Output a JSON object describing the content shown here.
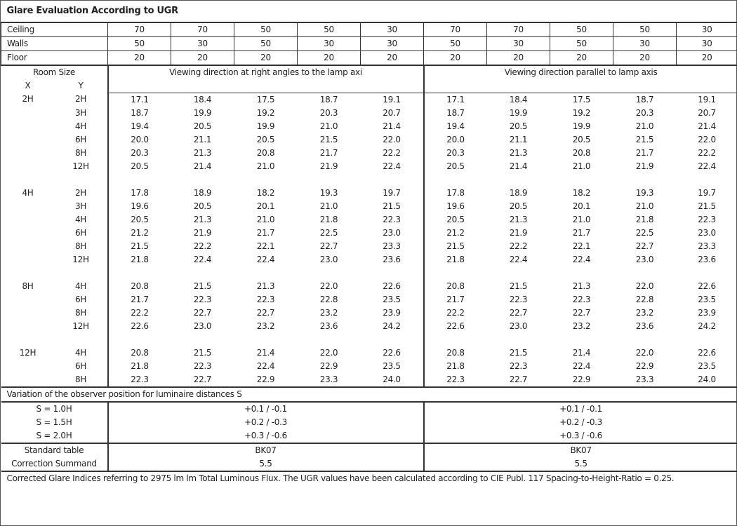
{
  "title": "Glare Evaluation According to UGR",
  "reflectance": {
    "ceiling_label": "Ceiling",
    "walls_label": "Walls",
    "floor_label": "Floor",
    "ceiling": [
      "70",
      "70",
      "50",
      "50",
      "30",
      "70",
      "70",
      "50",
      "50",
      "30"
    ],
    "walls": [
      "50",
      "30",
      "50",
      "30",
      "30",
      "50",
      "30",
      "50",
      "30",
      "30"
    ],
    "floor": [
      "20",
      "20",
      "20",
      "20",
      "20",
      "20",
      "20",
      "20",
      "20",
      "20"
    ]
  },
  "header": {
    "room_size": "Room Size",
    "x": "X",
    "y": "Y",
    "dir_right": "Viewing direction at right angles to the lamp axi",
    "dir_parallel": "Viewing direction parallel to lamp axis"
  },
  "groups": [
    {
      "x": "2H",
      "rows": [
        {
          "y": "2H",
          "right": [
            "17.1",
            "18.4",
            "17.5",
            "18.7",
            "19.1"
          ],
          "parallel": [
            "17.1",
            "18.4",
            "17.5",
            "18.7",
            "19.1"
          ]
        },
        {
          "y": "3H",
          "right": [
            "18.7",
            "19.9",
            "19.2",
            "20.3",
            "20.7"
          ],
          "parallel": [
            "18.7",
            "19.9",
            "19.2",
            "20.3",
            "20.7"
          ]
        },
        {
          "y": "4H",
          "right": [
            "19.4",
            "20.5",
            "19.9",
            "21.0",
            "21.4"
          ],
          "parallel": [
            "19.4",
            "20.5",
            "19.9",
            "21.0",
            "21.4"
          ]
        },
        {
          "y": "6H",
          "right": [
            "20.0",
            "21.1",
            "20.5",
            "21.5",
            "22.0"
          ],
          "parallel": [
            "20.0",
            "21.1",
            "20.5",
            "21.5",
            "22.0"
          ]
        },
        {
          "y": "8H",
          "right": [
            "20.3",
            "21.3",
            "20.8",
            "21.7",
            "22.2"
          ],
          "parallel": [
            "20.3",
            "21.3",
            "20.8",
            "21.7",
            "22.2"
          ]
        },
        {
          "y": "12H",
          "right": [
            "20.5",
            "21.4",
            "21.0",
            "21.9",
            "22.4"
          ],
          "parallel": [
            "20.5",
            "21.4",
            "21.0",
            "21.9",
            "22.4"
          ]
        }
      ]
    },
    {
      "x": "4H",
      "rows": [
        {
          "y": "2H",
          "right": [
            "17.8",
            "18.9",
            "18.2",
            "19.3",
            "19.7"
          ],
          "parallel": [
            "17.8",
            "18.9",
            "18.2",
            "19.3",
            "19.7"
          ]
        },
        {
          "y": "3H",
          "right": [
            "19.6",
            "20.5",
            "20.1",
            "21.0",
            "21.5"
          ],
          "parallel": [
            "19.6",
            "20.5",
            "20.1",
            "21.0",
            "21.5"
          ]
        },
        {
          "y": "4H",
          "right": [
            "20.5",
            "21.3",
            "21.0",
            "21.8",
            "22.3"
          ],
          "parallel": [
            "20.5",
            "21.3",
            "21.0",
            "21.8",
            "22.3"
          ]
        },
        {
          "y": "6H",
          "right": [
            "21.2",
            "21.9",
            "21.7",
            "22.5",
            "23.0"
          ],
          "parallel": [
            "21.2",
            "21.9",
            "21.7",
            "22.5",
            "23.0"
          ]
        },
        {
          "y": "8H",
          "right": [
            "21.5",
            "22.2",
            "22.1",
            "22.7",
            "23.3"
          ],
          "parallel": [
            "21.5",
            "22.2",
            "22.1",
            "22.7",
            "23.3"
          ]
        },
        {
          "y": "12H",
          "right": [
            "21.8",
            "22.4",
            "22.4",
            "23.0",
            "23.6"
          ],
          "parallel": [
            "21.8",
            "22.4",
            "22.4",
            "23.0",
            "23.6"
          ]
        }
      ]
    },
    {
      "x": "8H",
      "rows": [
        {
          "y": "4H",
          "right": [
            "20.8",
            "21.5",
            "21.3",
            "22.0",
            "22.6"
          ],
          "parallel": [
            "20.8",
            "21.5",
            "21.3",
            "22.0",
            "22.6"
          ]
        },
        {
          "y": "6H",
          "right": [
            "21.7",
            "22.3",
            "22.3",
            "22.8",
            "23.5"
          ],
          "parallel": [
            "21.7",
            "22.3",
            "22.3",
            "22.8",
            "23.5"
          ]
        },
        {
          "y": "8H",
          "right": [
            "22.2",
            "22.7",
            "22.7",
            "23.2",
            "23.9"
          ],
          "parallel": [
            "22.2",
            "22.7",
            "22.7",
            "23.2",
            "23.9"
          ]
        },
        {
          "y": "12H",
          "right": [
            "22.6",
            "23.0",
            "23.2",
            "23.6",
            "24.2"
          ],
          "parallel": [
            "22.6",
            "23.0",
            "23.2",
            "23.6",
            "24.2"
          ]
        }
      ]
    },
    {
      "x": "12H",
      "rows": [
        {
          "y": "4H",
          "right": [
            "20.8",
            "21.5",
            "21.4",
            "22.0",
            "22.6"
          ],
          "parallel": [
            "20.8",
            "21.5",
            "21.4",
            "22.0",
            "22.6"
          ]
        },
        {
          "y": "6H",
          "right": [
            "21.8",
            "22.3",
            "22.4",
            "22.9",
            "23.5"
          ],
          "parallel": [
            "21.8",
            "22.3",
            "22.4",
            "22.9",
            "23.5"
          ]
        },
        {
          "y": "8H",
          "right": [
            "22.3",
            "22.7",
            "22.9",
            "23.3",
            "24.0"
          ],
          "parallel": [
            "22.3",
            "22.7",
            "22.9",
            "23.3",
            "24.0"
          ]
        }
      ]
    }
  ],
  "variation": {
    "title": "Variation of the observer position for luminaire distances S",
    "rows": [
      {
        "label": "S = 1.0H",
        "right": "+0.1 / -0.1",
        "parallel": "+0.1 / -0.1"
      },
      {
        "label": "S = 1.5H",
        "right": "+0.2 / -0.3",
        "parallel": "+0.2 / -0.3"
      },
      {
        "label": "S = 2.0H",
        "right": "+0.3 / -0.6",
        "parallel": "+0.3 / -0.6"
      }
    ]
  },
  "standard_table": {
    "label": "Standard table",
    "right": "BK07",
    "parallel": "BK07"
  },
  "correction": {
    "label": "Correction Summand",
    "right": "5.5",
    "parallel": "5.5"
  },
  "footer": "Corrected Glare Indices referring to 2975 lm lm Total Luminous Flux. The UGR values have been calculated according to CIE Publ. 117    Spacing-to-Height-Ratio = 0.25."
}
